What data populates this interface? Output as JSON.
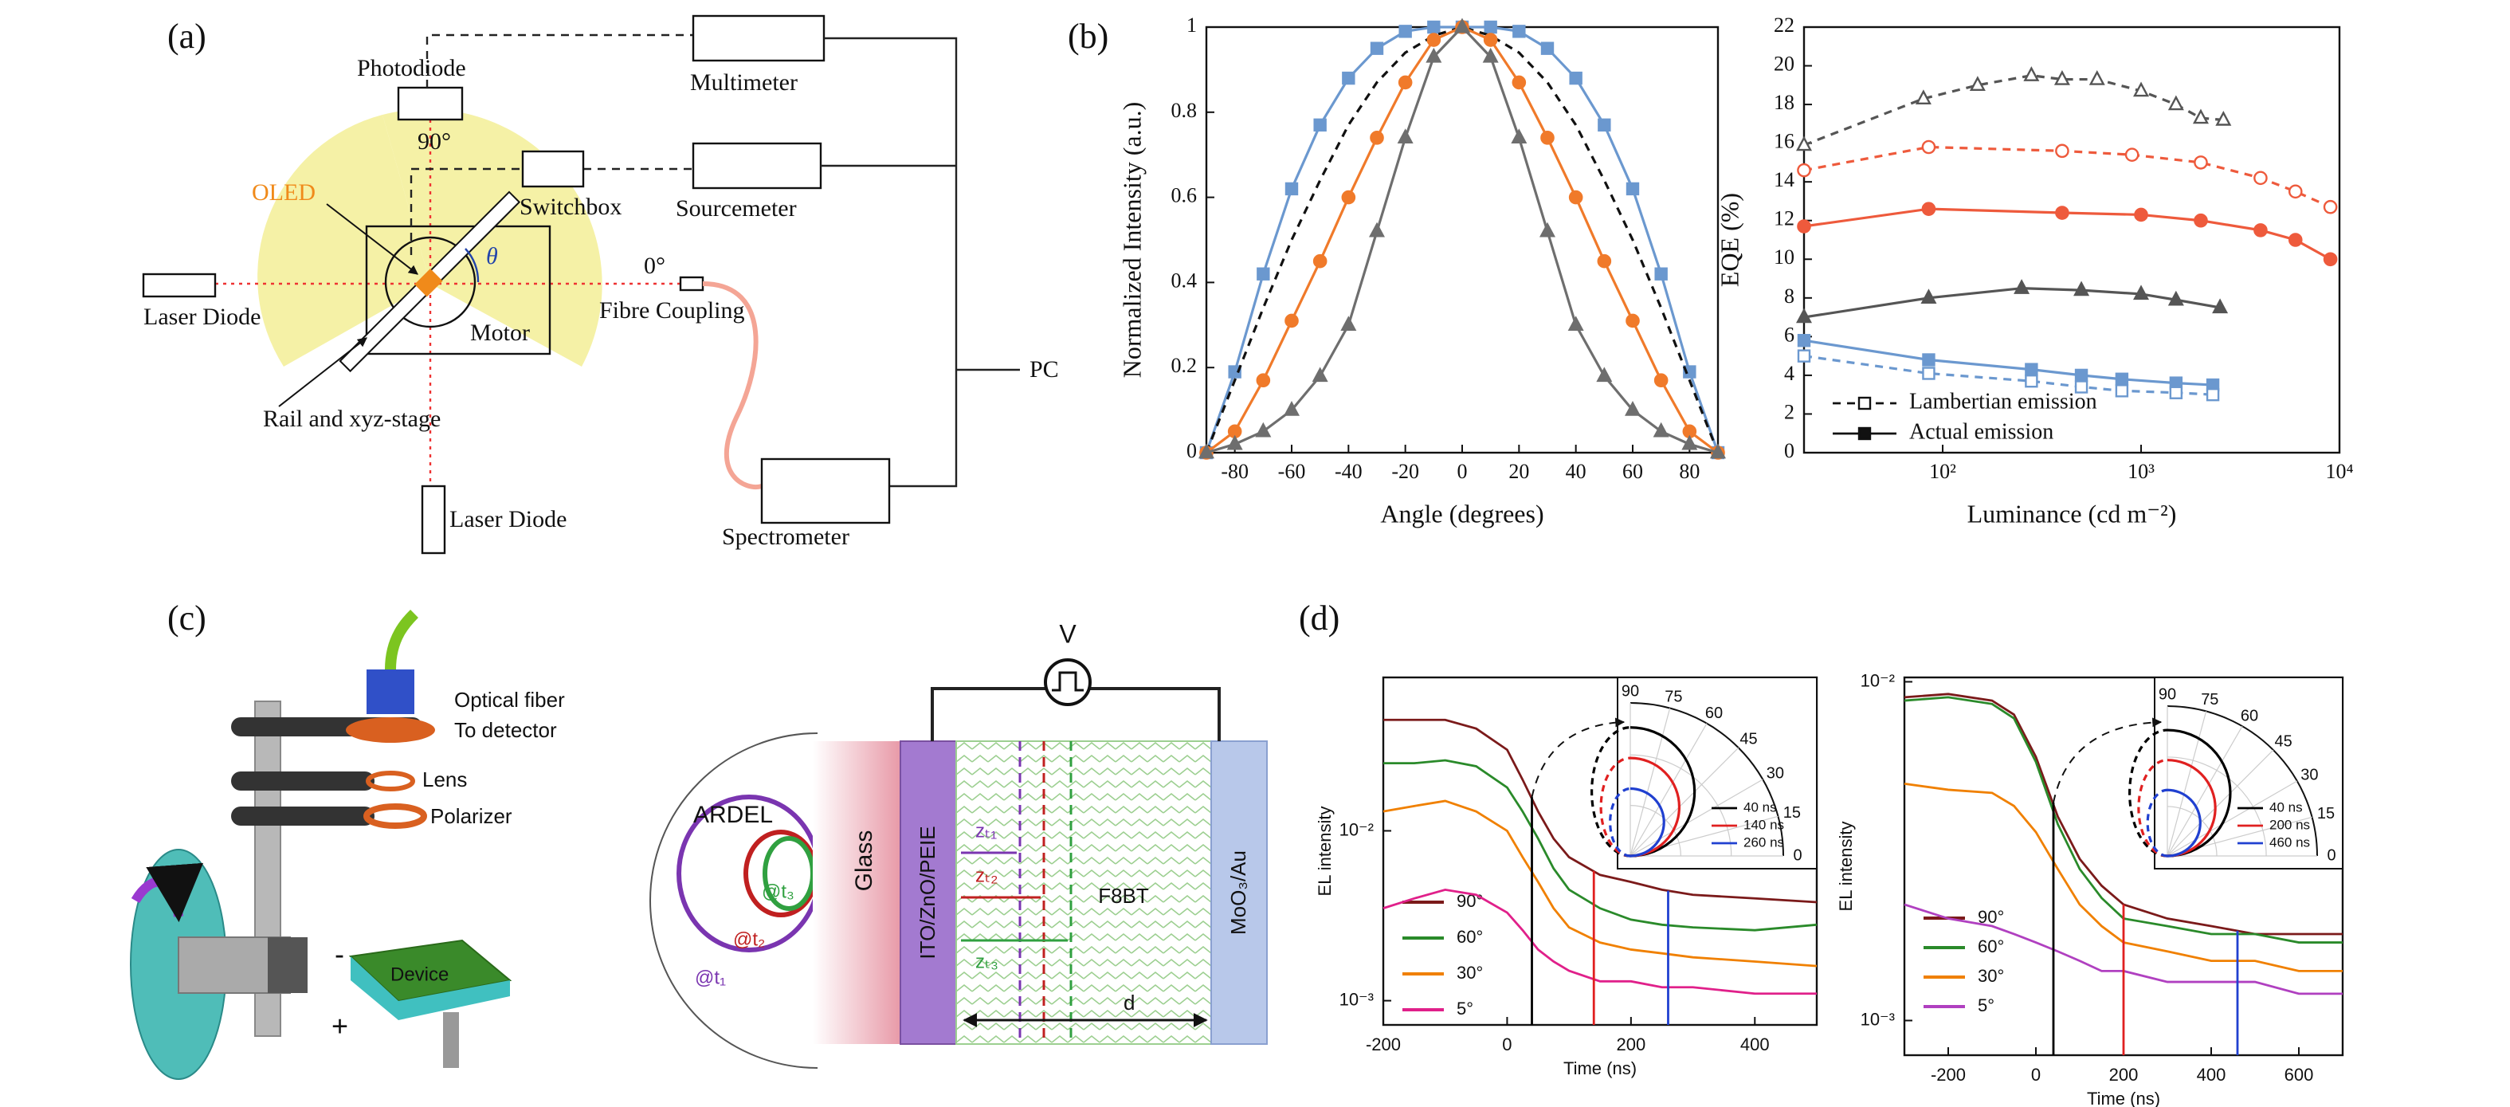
{
  "panel_a": {
    "label": "(a)",
    "photodiode": "Photodiode",
    "angle_90": "90°",
    "multimeter": "Multimeter",
    "oled": "OLED",
    "switchbox": "Switchbox",
    "sourcemeter": "Sourcemeter",
    "theta": "θ",
    "angle_0": "0°",
    "laser_left": "Laser Diode",
    "motor": "Motor",
    "fibre": "Fibre Coupling",
    "pc": "PC",
    "rail": "Rail and xyz-stage",
    "laser_bottom": "Laser Diode",
    "spectrometer": "Spectrometer"
  },
  "panel_b": {
    "label": "(b)"
  },
  "panel_c": {
    "label": "(c)",
    "fiber": "Optical fiber",
    "detector": "To detector",
    "lens": "Lens",
    "polarizer": "Polarizer",
    "device": "Device",
    "minus": "-",
    "plus": "+",
    "ardel": "ARDEL",
    "t3": "@t₃",
    "t2": "@t₂",
    "t1": "@t₁",
    "glass": "Glass",
    "ito": "ITO/ZnO/PEIE",
    "f8bt": "F8BT",
    "moo3": "MoO₃/Au",
    "v": "V",
    "z1": "zₜ₁",
    "z2": "zₜ₂",
    "z3": "zₜ₃",
    "d": "d"
  },
  "panel_d": {
    "label": "(d)"
  },
  "chart_data": [
    {
      "type": "line",
      "xlabel": "Angle (degrees)",
      "ylabel": "Normalized Intensity (a.u.)",
      "x": [
        -90,
        -80,
        -70,
        -60,
        -50,
        -40,
        -30,
        -20,
        -10,
        0,
        10,
        20,
        30,
        40,
        50,
        60,
        70,
        80,
        90
      ],
      "xlim": [
        -90,
        90
      ],
      "xticks": [
        -80,
        -60,
        -40,
        -20,
        0,
        20,
        40,
        60,
        80
      ],
      "ylim": [
        0,
        1
      ],
      "yticks": [
        0,
        0.2,
        0.4,
        0.6,
        0.8,
        1
      ],
      "series": [
        {
          "color": "#6b98cf",
          "marker": "square",
          "filled": true,
          "dashed": false,
          "values": [
            0,
            0.19,
            0.42,
            0.62,
            0.77,
            0.88,
            0.95,
            0.99,
            1,
            1,
            1,
            0.99,
            0.95,
            0.88,
            0.77,
            0.62,
            0.42,
            0.19,
            0
          ]
        },
        {
          "color": "#111111",
          "marker": null,
          "filled": false,
          "dashed": true,
          "values": [
            0,
            0.17,
            0.34,
            0.5,
            0.64,
            0.77,
            0.87,
            0.94,
            0.98,
            1,
            0.98,
            0.94,
            0.87,
            0.77,
            0.64,
            0.5,
            0.34,
            0.17,
            0
          ]
        },
        {
          "color": "#f07a2a",
          "marker": "circle",
          "filled": true,
          "dashed": false,
          "values": [
            0,
            0.05,
            0.17,
            0.31,
            0.45,
            0.6,
            0.74,
            0.87,
            0.97,
            1,
            0.97,
            0.87,
            0.74,
            0.6,
            0.45,
            0.31,
            0.17,
            0.05,
            0
          ]
        },
        {
          "color": "#6e6e6e",
          "marker": "triangle",
          "filled": true,
          "dashed": false,
          "values": [
            0,
            0.02,
            0.05,
            0.1,
            0.18,
            0.3,
            0.52,
            0.74,
            0.93,
            1,
            0.93,
            0.74,
            0.52,
            0.3,
            0.18,
            0.1,
            0.05,
            0.02,
            0
          ]
        }
      ]
    },
    {
      "type": "line",
      "xlabel": "Luminance (cd m⁻²)",
      "ylabel": "EQE (%)",
      "logx": true,
      "xlim": [
        20,
        10000
      ],
      "xticks": [
        {
          "value": 100,
          "label": "10²"
        },
        {
          "value": 1000,
          "label": "10³"
        },
        {
          "value": 10000,
          "label": "10⁴"
        }
      ],
      "ylim": [
        0,
        22
      ],
      "yticks": [
        0,
        2,
        4,
        6,
        8,
        10,
        12,
        14,
        16,
        18,
        20,
        22
      ],
      "legend": [
        {
          "label": "Lambertian emission",
          "dashed": true,
          "filled": false
        },
        {
          "label": "Actual emission",
          "dashed": false,
          "filled": true
        }
      ],
      "series": [
        {
          "color": "#555555",
          "marker": "triangle",
          "filled": false,
          "dashed": true,
          "x": [
            20,
            80,
            150,
            280,
            400,
            600,
            1000,
            1500,
            2000,
            2600
          ],
          "values": [
            15.9,
            18.3,
            19,
            19.5,
            19.3,
            19.3,
            18.7,
            18,
            17.3,
            17.2
          ]
        },
        {
          "color": "#ee5a3c",
          "marker": "circle",
          "filled": false,
          "dashed": true,
          "x": [
            20,
            85,
            400,
            900,
            2000,
            4000,
            6000,
            9000
          ],
          "values": [
            14.6,
            15.8,
            15.6,
            15.4,
            15,
            14.2,
            13.5,
            12.7
          ]
        },
        {
          "color": "#ee5a3c",
          "marker": "circle",
          "filled": true,
          "dashed": false,
          "x": [
            20,
            85,
            400,
            1000,
            2000,
            4000,
            6000,
            9000
          ],
          "values": [
            11.7,
            12.6,
            12.4,
            12.3,
            12,
            11.5,
            11,
            10
          ]
        },
        {
          "color": "#555555",
          "marker": "triangle",
          "filled": true,
          "dashed": false,
          "x": [
            20,
            85,
            250,
            500,
            1000,
            1500,
            2500
          ],
          "values": [
            7,
            8,
            8.5,
            8.4,
            8.2,
            7.9,
            7.5
          ]
        },
        {
          "color": "#6b98cf",
          "marker": "square",
          "filled": true,
          "dashed": false,
          "x": [
            20,
            85,
            280,
            500,
            800,
            1500,
            2300
          ],
          "values": [
            5.8,
            4.8,
            4.3,
            4,
            3.8,
            3.6,
            3.5
          ]
        },
        {
          "color": "#6b98cf",
          "marker": "square",
          "filled": false,
          "dashed": true,
          "x": [
            20,
            85,
            280,
            500,
            800,
            1500,
            2300
          ],
          "values": [
            5,
            4.1,
            3.7,
            3.4,
            3.2,
            3.1,
            3
          ]
        }
      ]
    },
    {
      "type": "line",
      "xlabel": "Time (ns)",
      "ylabel": "EL intensity",
      "logy": true,
      "x": [
        -200,
        -150,
        -100,
        -50,
        0,
        25,
        50,
        75,
        100,
        150,
        200,
        250,
        300,
        400,
        500
      ],
      "xlim": [
        -200,
        500
      ],
      "xticks": [
        -200,
        0,
        200,
        400
      ],
      "ylim": [
        0.00072,
        0.08
      ],
      "yticks": [
        {
          "value": 0.001,
          "label": "10⁻³"
        },
        {
          "value": 0.01,
          "label": "10⁻²"
        }
      ],
      "series": [
        {
          "name": "90°",
          "color": "#7b1a1a",
          "values": [
            0.045,
            0.045,
            0.045,
            0.04,
            0.03,
            0.02,
            0.013,
            0.009,
            0.007,
            0.0055,
            0.005,
            0.0045,
            0.0042,
            0.004,
            0.0038
          ]
        },
        {
          "name": "60°",
          "color": "#2a8a2a",
          "values": [
            0.025,
            0.025,
            0.026,
            0.024,
            0.018,
            0.013,
            0.009,
            0.006,
            0.0045,
            0.0035,
            0.003,
            0.0028,
            0.0027,
            0.0026,
            0.0028
          ]
        },
        {
          "name": "30°",
          "color": "#f08000",
          "values": [
            0.013,
            0.014,
            0.015,
            0.013,
            0.01,
            0.007,
            0.005,
            0.0035,
            0.0027,
            0.0022,
            0.002,
            0.0019,
            0.0018,
            0.0017,
            0.0016
          ]
        },
        {
          "name": "5°",
          "color": "#e0208a",
          "values": [
            0.0035,
            0.004,
            0.0045,
            0.0042,
            0.0033,
            0.0026,
            0.002,
            0.0017,
            0.0015,
            0.0013,
            0.0013,
            0.0012,
            0.0012,
            0.0011,
            0.0011
          ]
        }
      ],
      "vlines": [
        {
          "x": 40,
          "color": "#000000"
        },
        {
          "x": 140,
          "color": "#e02020"
        },
        {
          "x": 260,
          "color": "#2040d0"
        }
      ],
      "inset": {
        "angles": [
          90,
          75,
          60,
          45,
          30,
          15,
          0
        ],
        "legend": [
          "40 ns",
          "140 ns",
          "260 ns"
        ],
        "colors": [
          "#000000",
          "#e02020",
          "#2040d0"
        ]
      }
    },
    {
      "type": "line",
      "xlabel": "Time (ns)",
      "ylabel": "EL intensity",
      "logy": true,
      "x": [
        -300,
        -200,
        -100,
        -50,
        0,
        50,
        100,
        150,
        200,
        300,
        400,
        500,
        600,
        700
      ],
      "xlim": [
        -300,
        700
      ],
      "xticks": [
        -200,
        0,
        200,
        400,
        600
      ],
      "ylim": [
        0.00079,
        0.0103
      ],
      "yticks": [
        {
          "value": 0.001,
          "label": "10⁻³"
        },
        {
          "value": 0.01,
          "label": "10⁻²"
        }
      ],
      "series": [
        {
          "name": "90°",
          "color": "#7b1a1a",
          "values": [
            0.009,
            0.0092,
            0.0088,
            0.008,
            0.006,
            0.004,
            0.003,
            0.0025,
            0.0022,
            0.002,
            0.0019,
            0.0018,
            0.0018,
            0.0018
          ]
        },
        {
          "name": "60°",
          "color": "#2a8a2a",
          "values": [
            0.0088,
            0.009,
            0.0086,
            0.0078,
            0.0058,
            0.0038,
            0.0028,
            0.0023,
            0.002,
            0.0019,
            0.0018,
            0.0018,
            0.0017,
            0.0017
          ]
        },
        {
          "name": "30°",
          "color": "#f08000",
          "values": [
            0.005,
            0.0048,
            0.0047,
            0.0043,
            0.0036,
            0.0028,
            0.0022,
            0.0019,
            0.0017,
            0.0016,
            0.0015,
            0.0015,
            0.0014,
            0.0014
          ]
        },
        {
          "name": "5°",
          "color": "#b040c0",
          "values": [
            0.0022,
            0.002,
            0.0019,
            0.0018,
            0.0017,
            0.0016,
            0.0015,
            0.0014,
            0.0014,
            0.0013,
            0.0013,
            0.0013,
            0.0012,
            0.0012
          ]
        }
      ],
      "vlines": [
        {
          "x": 40,
          "color": "#000000"
        },
        {
          "x": 200,
          "color": "#e02020"
        },
        {
          "x": 460,
          "color": "#2040d0"
        }
      ],
      "inset": {
        "angles": [
          90,
          75,
          60,
          45,
          30,
          15,
          0
        ],
        "legend": [
          "40 ns",
          "200 ns",
          "460 ns"
        ],
        "colors": [
          "#000000",
          "#e02020",
          "#2040d0"
        ]
      }
    }
  ]
}
